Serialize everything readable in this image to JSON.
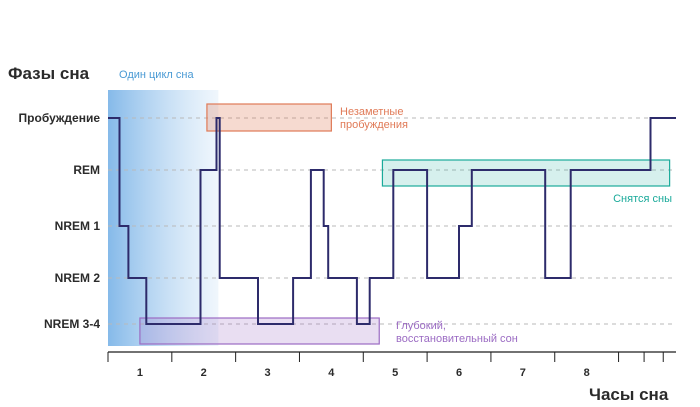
{
  "chart_data": {
    "type": "line",
    "step": true,
    "title": "",
    "ylabel": "Фазы сна",
    "xlabel": "Часы сна",
    "y_categories": [
      "NREM 3-4",
      "NREM 2",
      "NREM 1",
      "REM",
      "Пробуждение"
    ],
    "xticks": [
      1,
      2,
      3,
      4,
      5,
      6,
      7,
      8
    ],
    "xlim": [
      0.5,
      9.4
    ],
    "grid": "horizontal-dashed",
    "series": [
      {
        "color": "#2d2b6b",
        "points": [
          [
            0.5,
            4
          ],
          [
            0.68,
            4
          ],
          [
            0.68,
            2
          ],
          [
            0.82,
            2
          ],
          [
            0.82,
            1
          ],
          [
            1.1,
            1
          ],
          [
            1.1,
            0
          ],
          [
            1.95,
            0
          ],
          [
            1.95,
            3
          ],
          [
            2.2,
            3
          ],
          [
            2.2,
            4
          ],
          [
            2.25,
            4
          ],
          [
            2.25,
            1
          ],
          [
            2.85,
            1
          ],
          [
            2.85,
            0
          ],
          [
            3.4,
            0
          ],
          [
            3.4,
            1
          ],
          [
            3.68,
            1
          ],
          [
            3.68,
            3
          ],
          [
            3.88,
            3
          ],
          [
            3.88,
            2
          ],
          [
            3.95,
            2
          ],
          [
            3.95,
            1
          ],
          [
            4.4,
            1
          ],
          [
            4.4,
            0
          ],
          [
            4.6,
            0
          ],
          [
            4.6,
            1
          ],
          [
            4.97,
            1
          ],
          [
            4.97,
            3
          ],
          [
            5.5,
            3
          ],
          [
            5.5,
            1
          ],
          [
            6.0,
            1
          ],
          [
            6.0,
            2
          ],
          [
            6.2,
            2
          ],
          [
            6.2,
            3
          ],
          [
            7.35,
            3
          ],
          [
            7.35,
            1
          ],
          [
            7.75,
            1
          ],
          [
            7.75,
            3
          ],
          [
            9.0,
            3
          ],
          [
            9.0,
            4
          ],
          [
            9.4,
            4
          ]
        ]
      }
    ],
    "annotations": [
      {
        "id": "cycle",
        "text": "Один цикл сна",
        "color": "#4a9ad4",
        "x_range": [
          0.5,
          2.23
        ],
        "y_range": [
          -0.3,
          4.6
        ]
      },
      {
        "id": "awake",
        "text": "Незаметные пробуждения",
        "color": "#e07a57",
        "x_range": [
          2.05,
          4.0
        ],
        "y_range": [
          3.7,
          4.2
        ]
      },
      {
        "id": "dreams",
        "text": "Снятся сны",
        "color": "#1aaa9a",
        "x_range": [
          4.8,
          9.3
        ],
        "y_range": [
          2.7,
          3.2
        ]
      },
      {
        "id": "deep",
        "text": "Глубокий, восстановительный сон",
        "color": "#9b6bc3",
        "x_range": [
          1.0,
          4.75
        ],
        "y_range": [
          -0.25,
          0.22
        ]
      }
    ]
  }
}
